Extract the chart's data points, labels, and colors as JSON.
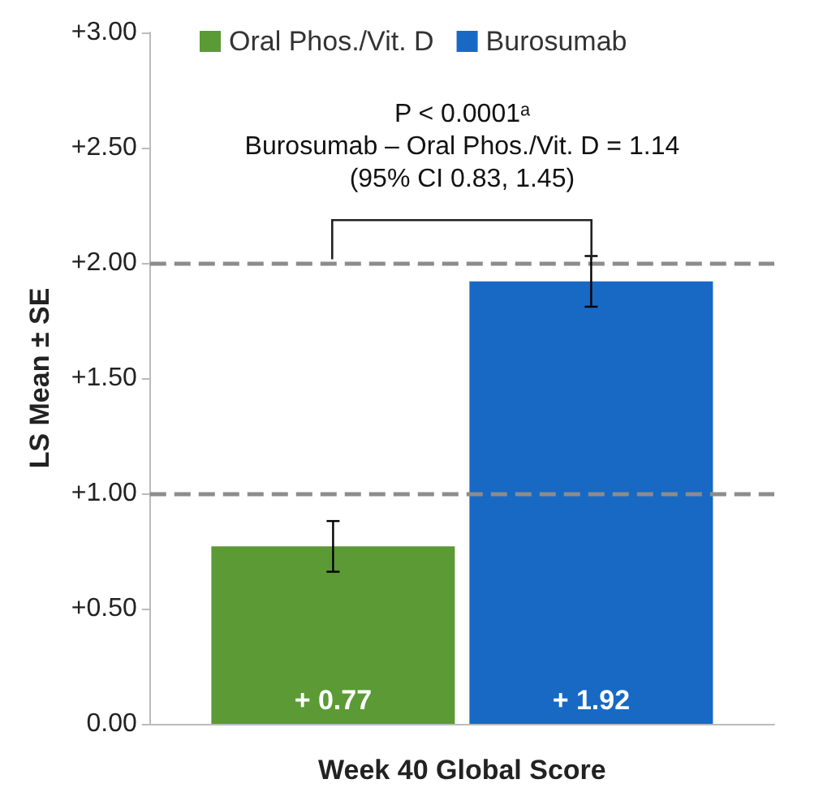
{
  "chart_data": {
    "type": "bar",
    "xlabel": "Week 40 Global Score",
    "ylabel": "LS Mean ± SE",
    "categories": [
      null
    ],
    "series": [
      {
        "name": "Oral Phos./Vit. D",
        "color": "#5b9a35",
        "values": [
          0.77
        ],
        "errors": [
          0.11
        ],
        "value_labels": [
          "+ 0.77"
        ]
      },
      {
        "name": "Burosumab",
        "color": "#1769c4",
        "values": [
          1.92
        ],
        "errors": [
          0.11
        ],
        "value_labels": [
          "+ 1.92"
        ]
      }
    ],
    "ylim": [
      0,
      3
    ],
    "yticks": [
      {
        "value": 0,
        "label": "0.00"
      },
      {
        "value": 0.5,
        "label": "+0.50"
      },
      {
        "value": 1,
        "label": "+1.00"
      },
      {
        "value": 1.5,
        "label": "+1.50"
      },
      {
        "value": 2,
        "label": "+2.00"
      },
      {
        "value": 2.5,
        "label": "+2.50"
      },
      {
        "value": 3,
        "label": "+3.00"
      }
    ],
    "ref_lines": [
      {
        "axis": "y",
        "value": 1,
        "color": "#8c8c8c",
        "line_style": "dashed"
      },
      {
        "axis": "y",
        "value": 2,
        "color": "#8c8c8c",
        "line_style": "dashed"
      }
    ],
    "annotations": [
      "P < 0.0001ᵃ",
      "Burosumab – Oral Phos./Vit. D = 1.14",
      "(95% CI 0.83, 1.45)"
    ],
    "legend": "top",
    "grid": false
  }
}
